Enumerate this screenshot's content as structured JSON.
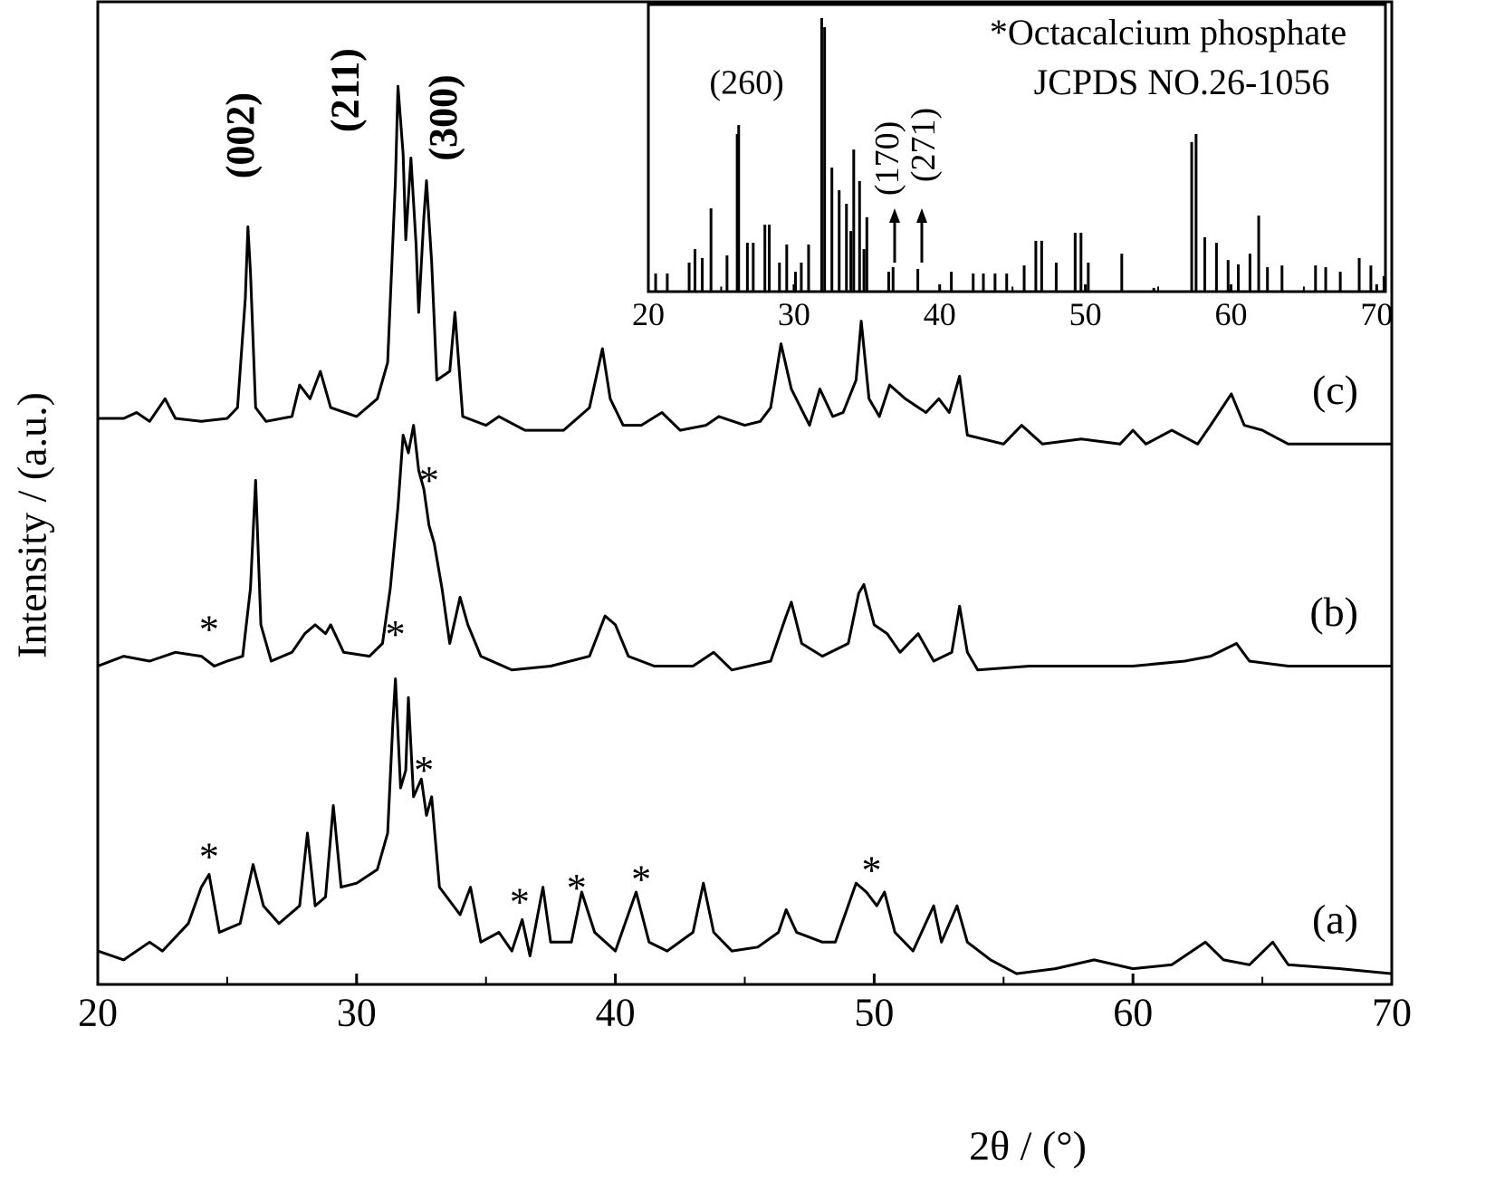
{
  "chart_data": [
    {
      "type": "line",
      "xlabel": "2θ / (°)",
      "ylabel": "Intensity / (a.u.)",
      "xlim": [
        20,
        70
      ],
      "xticks": [
        20,
        30,
        40,
        50,
        60,
        70
      ],
      "xminorticks": [
        25,
        35,
        45,
        55,
        65
      ],
      "ylim": [
        0,
        100
      ],
      "series": [
        {
          "name": "(a)",
          "color": "#000000",
          "x": [
            20,
            21,
            22,
            22.5,
            23.5,
            24,
            24.3,
            24.7,
            25.5,
            26,
            26.4,
            27,
            27.8,
            28.1,
            28.4,
            28.8,
            29.1,
            29.4,
            30,
            30.8,
            31.2,
            31.4,
            31.5,
            31.7,
            31.9,
            32,
            32.2,
            32.5,
            32.7,
            32.9,
            33.2,
            34,
            34.4,
            34.8,
            35.5,
            36,
            36.4,
            36.7,
            37.2,
            37.5,
            38.3,
            38.7,
            39.2,
            40,
            40.8,
            41.3,
            42,
            43,
            43.4,
            43.8,
            44.5,
            45.5,
            46.3,
            46.6,
            47,
            48,
            48.5,
            49.3,
            49.7,
            50.1,
            50.4,
            50.8,
            51.5,
            52.3,
            52.6,
            53.2,
            53.6,
            54.5,
            55.5,
            57,
            58.5,
            60,
            61.5,
            62.8,
            63.5,
            64.5,
            65.4,
            66,
            68,
            70
          ],
          "values": [
            3.4,
            2.5,
            4.3,
            3.4,
            6.2,
            9.9,
            11.2,
            5.3,
            6.2,
            12.2,
            8.0,
            6.2,
            8.0,
            15.4,
            8.0,
            8.9,
            18.2,
            9.9,
            10.3,
            11.7,
            15.4,
            26.5,
            31.1,
            20.0,
            21.8,
            29.2,
            19.1,
            20.9,
            17.2,
            19.1,
            9.9,
            7.1,
            9.9,
            4.3,
            5.3,
            3.4,
            6.6,
            2.9,
            9.9,
            4.3,
            4.3,
            9.4,
            5.3,
            3.4,
            9.4,
            4.3,
            3.4,
            5.3,
            10.3,
            5.3,
            3.4,
            3.8,
            5.3,
            7.6,
            5.3,
            4.3,
            4.3,
            10.3,
            9.4,
            8.0,
            9.4,
            5.3,
            3.4,
            8.0,
            4.3,
            8.0,
            4.3,
            2.5,
            1.1,
            1.6,
            2.5,
            1.6,
            2.0,
            4.3,
            2.5,
            2.0,
            4.3,
            2.0,
            1.6,
            1.1
          ]
        },
        {
          "name": "(b)",
          "color": "#000000",
          "x": [
            20,
            21,
            22,
            23,
            24,
            24.5,
            25,
            25.6,
            25.9,
            26.1,
            26.3,
            26.7,
            27.5,
            28,
            28.4,
            28.8,
            29,
            29.5,
            30.5,
            31,
            31.3,
            31.6,
            31.8,
            32,
            32.2,
            32.4,
            32.6,
            32.8,
            33,
            33.3,
            33.6,
            34,
            34.3,
            34.8,
            36,
            37.5,
            39,
            39.6,
            40,
            40.5,
            41.5,
            43,
            43.8,
            44.5,
            46,
            46.6,
            46.8,
            47.2,
            48,
            49,
            49.4,
            49.6,
            50,
            50.5,
            51,
            51.7,
            52.3,
            53,
            53.3,
            53.6,
            54,
            56,
            58,
            60,
            62,
            63,
            64,
            64.5,
            66,
            70
          ],
          "values": [
            32.4,
            33.4,
            32.9,
            33.8,
            33.4,
            32.4,
            32.9,
            33.4,
            40.3,
            51.3,
            36.6,
            32.9,
            33.8,
            35.7,
            36.6,
            35.7,
            36.6,
            33.8,
            33.4,
            34.7,
            40.3,
            48.6,
            55.9,
            54.1,
            56.9,
            52.3,
            50.4,
            46.7,
            44.9,
            40.3,
            34.7,
            39.4,
            36.6,
            33.4,
            32.0,
            32.4,
            33.4,
            37.5,
            36.6,
            33.4,
            32.4,
            32.4,
            33.8,
            32.0,
            32.9,
            37.5,
            38.9,
            34.7,
            33.4,
            34.7,
            39.8,
            40.7,
            36.6,
            35.7,
            33.8,
            35.7,
            32.9,
            33.8,
            38.5,
            33.8,
            32.0,
            32.4,
            32.4,
            32.4,
            32.9,
            33.4,
            34.7,
            32.9,
            32.4,
            32.4
          ]
        },
        {
          "name": "(c)",
          "color": "#000000",
          "x": [
            20,
            21,
            21.5,
            22,
            22.6,
            23,
            24,
            25,
            25.4,
            25.7,
            25.8,
            25.9,
            26.1,
            26.5,
            27.5,
            27.8,
            28.2,
            28.6,
            29,
            30,
            30.8,
            31.2,
            31.5,
            31.6,
            31.8,
            31.9,
            32.1,
            32.3,
            32.4,
            32.6,
            32.7,
            32.9,
            33.1,
            33.6,
            33.8,
            34.1,
            35,
            35.5,
            36.5,
            38,
            39,
            39.5,
            39.8,
            40.3,
            41,
            41.8,
            42.5,
            43.5,
            44,
            45,
            45.6,
            46,
            46.4,
            46.8,
            47.5,
            47.9,
            48.4,
            48.8,
            49.3,
            49.5,
            49.8,
            50.2,
            50.6,
            51.2,
            52,
            52.5,
            52.9,
            53.3,
            53.6,
            55,
            55.7,
            56.5,
            58,
            59.5,
            60,
            60.5,
            61.5,
            62.5,
            63,
            63.8,
            64.3,
            65,
            66,
            68,
            70
          ],
          "values": [
            57.6,
            57.6,
            58.2,
            57.3,
            59.6,
            57.6,
            57.3,
            57.6,
            58.7,
            69.8,
            77.1,
            72.5,
            58.7,
            57.3,
            57.8,
            61.0,
            59.6,
            62.4,
            58.7,
            57.8,
            59.6,
            63.3,
            81.8,
            91.4,
            84.5,
            75.8,
            84.1,
            75.3,
            68.4,
            78.1,
            81.8,
            73.5,
            61.5,
            62.4,
            68.4,
            57.8,
            56.9,
            57.8,
            56.4,
            56.4,
            58.7,
            64.7,
            59.6,
            56.9,
            56.9,
            58.2,
            56.4,
            56.9,
            57.8,
            56.9,
            57.3,
            58.7,
            65.2,
            60.6,
            56.9,
            60.6,
            57.8,
            58.2,
            61.5,
            67.5,
            59.6,
            57.8,
            61.0,
            59.6,
            58.2,
            59.6,
            58.2,
            61.9,
            55.9,
            55.0,
            56.9,
            55.0,
            55.5,
            55.0,
            56.4,
            55.0,
            56.4,
            55.0,
            56.9,
            60.1,
            56.9,
            56.4,
            55.0,
            55.0,
            55.0
          ]
        }
      ],
      "annotations": [
        {
          "text": "(002)",
          "x": 25.67,
          "y": 86.4,
          "rotation": 90
        },
        {
          "text": "(211)",
          "x": 29.7,
          "y": 91.0,
          "rotation": 90
        },
        {
          "text": "(300)",
          "x": 33.5,
          "y": 88.2,
          "rotation": 90
        },
        {
          "text": "*",
          "x": 24.3,
          "y": 35.7
        },
        {
          "text": "*",
          "x": 31.5,
          "y": 35.2
        },
        {
          "text": "*",
          "x": 32.8,
          "y": 50.9
        },
        {
          "text": "*",
          "x": 24.3,
          "y": 12.6
        },
        {
          "text": "*",
          "x": 32.6,
          "y": 21.4
        },
        {
          "text": "*",
          "x": 36.3,
          "y": 8.0
        },
        {
          "text": "*",
          "x": 38.5,
          "y": 9.4
        },
        {
          "text": "*",
          "x": 41.0,
          "y": 10.3
        },
        {
          "text": "*",
          "x": 49.9,
          "y": 11.2
        }
      ]
    },
    {
      "type": "bar",
      "legend_text": [
        "*Octacalcium phosphate",
        "JCPDS NO.26-1056"
      ],
      "xlim": [
        20,
        70.6
      ],
      "xticks": [
        20,
        30,
        40,
        50,
        60,
        70
      ],
      "xminorticks": [
        25,
        35,
        45,
        55,
        65
      ],
      "ylim": [
        0,
        100
      ],
      "color": "#000000",
      "x": [
        20.5,
        21.3,
        22.8,
        23.2,
        23.7,
        24.3,
        25.4,
        26.1,
        26.2,
        26.8,
        27.2,
        28,
        28.3,
        29,
        29.5,
        30.1,
        30.5,
        31,
        31.9,
        32.1,
        32.6,
        33.1,
        33.6,
        33.9,
        34.1,
        34.5,
        34.8,
        35,
        36.5,
        36.8,
        38.5,
        40.8,
        42.3,
        43,
        43.8,
        44.6,
        45.8,
        46.6,
        47,
        48,
        49.3,
        49.7,
        50.2,
        52.5,
        54.7,
        57.3,
        57.6,
        58.2,
        59,
        59.8,
        60.5,
        61.3,
        61.9,
        62.5,
        63.5,
        65.8,
        66.5,
        67.5,
        68.8,
        69.6,
        70.5
      ],
      "values": [
        6.3,
        6.3,
        10.1,
        14.8,
        11.7,
        29.0,
        12.6,
        54.9,
        58.0,
        17.0,
        17.0,
        23.3,
        23.3,
        10.1,
        16.4,
        6.9,
        10.1,
        16.4,
        95.3,
        92.1,
        43.2,
        35.3,
        30.6,
        21.1,
        49.5,
        38.5,
        14.8,
        25.9,
        6.9,
        8.5,
        7.9,
        6.9,
        6.3,
        6.3,
        6.3,
        6.3,
        9.1,
        17.7,
        17.7,
        10.1,
        20.5,
        20.5,
        10.1,
        13.2,
        1.3,
        52.1,
        54.9,
        18.9,
        17.0,
        11.0,
        9.5,
        13.2,
        26.5,
        8.5,
        9.1,
        9.1,
        8.5,
        6.9,
        11.7,
        9.1,
        5.4
      ],
      "annotations": [
        {
          "text": "(260)",
          "x": 26.75,
          "y": 71.6
        },
        {
          "text": "(170)",
          "x": 36.6,
          "y": 46.4,
          "rotation": 90
        },
        {
          "text": "(271)",
          "x": 39.1,
          "y": 51.1,
          "rotation": 90
        }
      ]
    }
  ]
}
